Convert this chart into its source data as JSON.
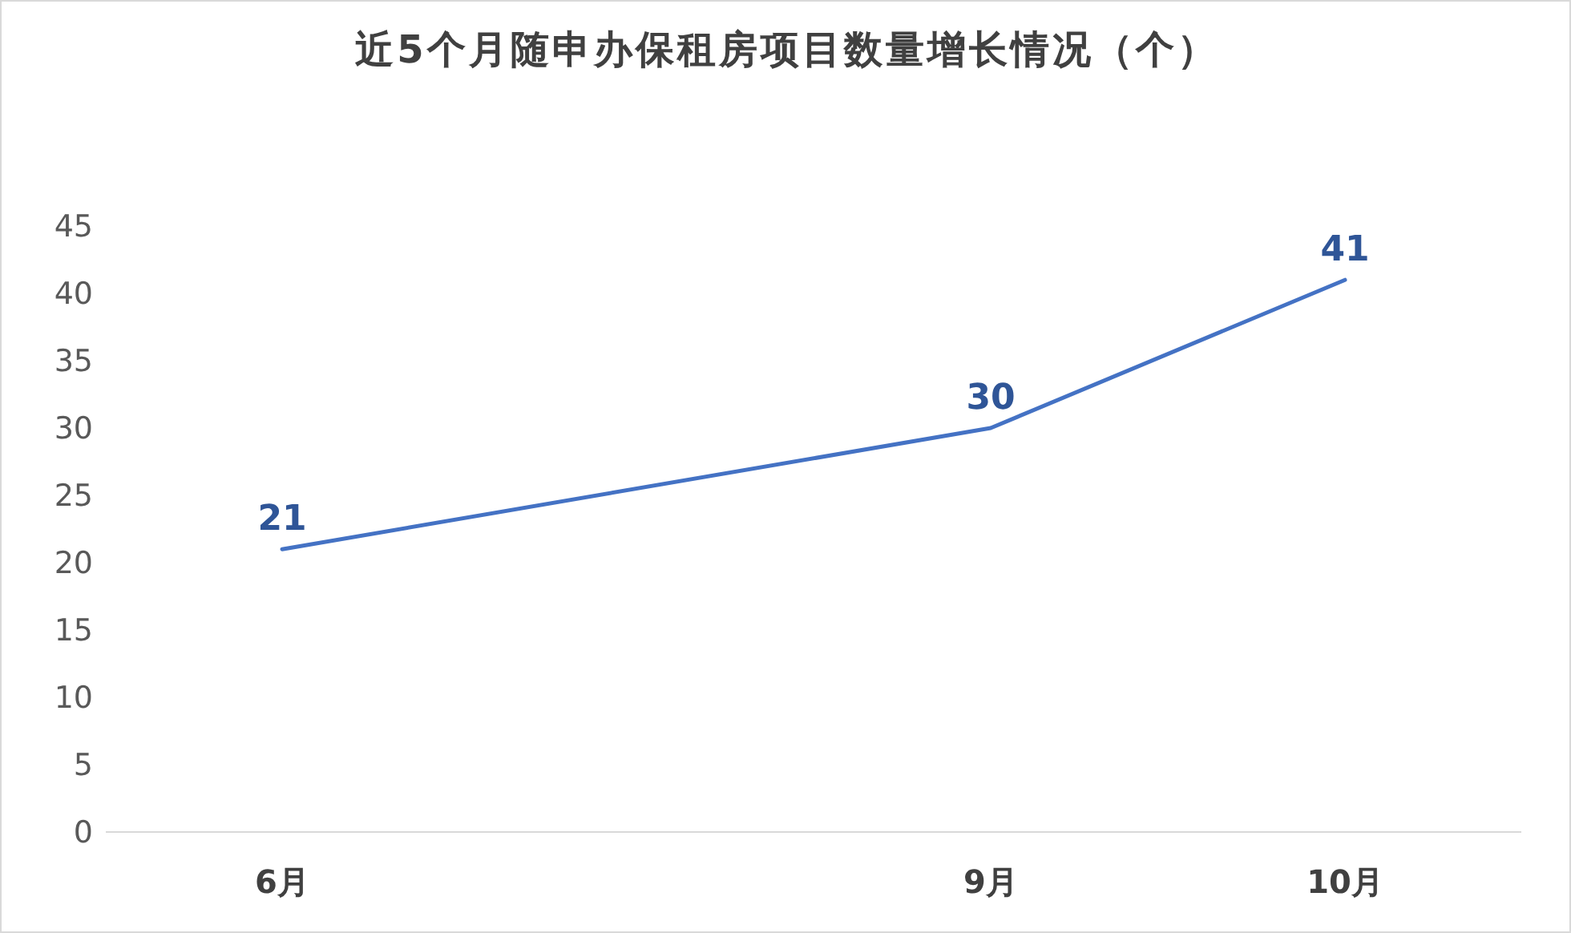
{
  "chart_data": {
    "type": "line",
    "title": "近5个月随申办保租房项目数量增长情况（个）",
    "categories": [
      "6月",
      null,
      "9月",
      "10月"
    ],
    "series": [
      {
        "color": "#4472c4",
        "values": [
          21,
          null,
          30,
          41
        ]
      }
    ],
    "ylim": [
      0,
      45
    ],
    "yticks": [
      0,
      5,
      10,
      15,
      20,
      25,
      30,
      35,
      40,
      45
    ],
    "marker": "none",
    "line_style": "solid",
    "data_labels": true
  }
}
